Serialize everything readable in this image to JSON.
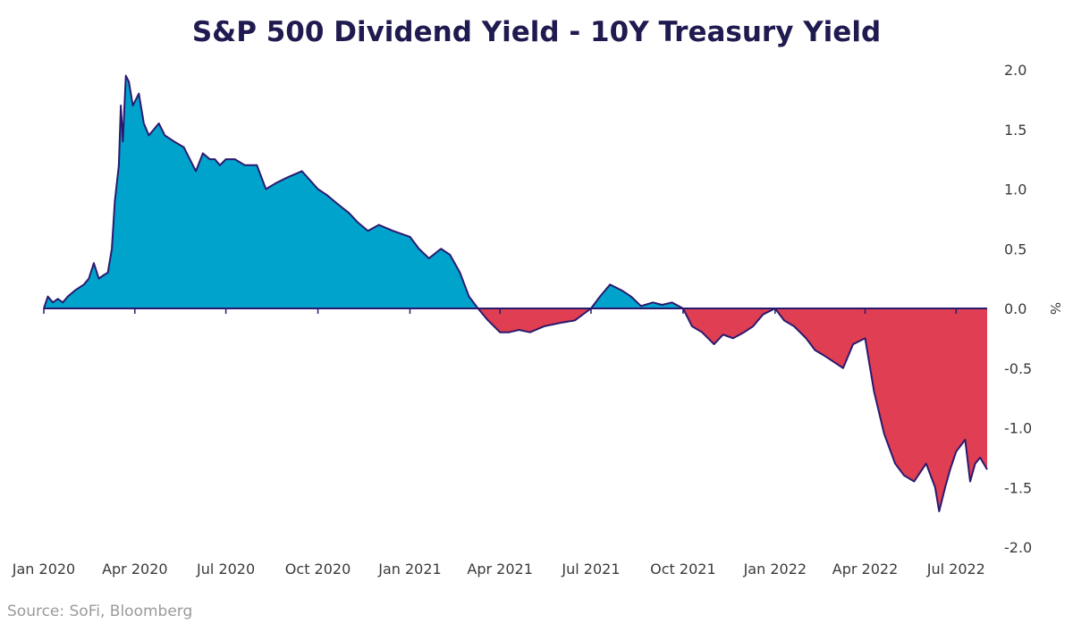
{
  "header": {
    "title": "S&P 500 Dividend Yield - 10Y Treasury Yield"
  },
  "footer": {
    "source": "Source: SoFi, Bloomberg"
  },
  "chart_data": {
    "type": "area",
    "title": "S&P 500 Dividend Yield - 10Y Treasury Yield",
    "xlabel": "",
    "ylabel": "%",
    "x_ticks": [
      "Jan 2020",
      "Apr 2020",
      "Jul 2020",
      "Oct 2020",
      "Jan 2021",
      "Apr 2021",
      "Jul 2021",
      "Oct 2021",
      "Jan 2022",
      "Apr 2022",
      "Jul 2022"
    ],
    "y_ticks": [
      "2.0",
      "1.5",
      "1.0",
      "0.5",
      "0.0",
      "-0.5",
      "-1.0",
      "-1.5",
      "-2.0"
    ],
    "ylim": [
      -2.0,
      2.0
    ],
    "xlim": [
      "2020-01-01",
      "2022-08-01"
    ],
    "grid": false,
    "positive_color": "#00a3cc",
    "negative_color": "#e03e52",
    "line_color": "#2a1a6e",
    "x": [
      "2020-01-01",
      "2020-01-05",
      "2020-01-10",
      "2020-01-15",
      "2020-01-20",
      "2020-01-25",
      "2020-02-01",
      "2020-02-10",
      "2020-02-15",
      "2020-02-20",
      "2020-02-25",
      "2020-03-01",
      "2020-03-05",
      "2020-03-09",
      "2020-03-12",
      "2020-03-16",
      "2020-03-18",
      "2020-03-20",
      "2020-03-23",
      "2020-03-26",
      "2020-03-30",
      "2020-04-05",
      "2020-04-10",
      "2020-04-15",
      "2020-04-20",
      "2020-04-25",
      "2020-05-01",
      "2020-05-10",
      "2020-05-20",
      "2020-06-01",
      "2020-06-08",
      "2020-06-15",
      "2020-06-20",
      "2020-06-25",
      "2020-07-01",
      "2020-07-10",
      "2020-07-20",
      "2020-08-01",
      "2020-08-10",
      "2020-08-20",
      "2020-09-01",
      "2020-09-15",
      "2020-10-01",
      "2020-10-10",
      "2020-10-20",
      "2020-11-01",
      "2020-11-10",
      "2020-11-20",
      "2020-12-01",
      "2020-12-15",
      "2021-01-01",
      "2021-01-10",
      "2021-01-20",
      "2021-02-01",
      "2021-02-10",
      "2021-02-20",
      "2021-03-01",
      "2021-03-10",
      "2021-03-20",
      "2021-04-01",
      "2021-04-10",
      "2021-04-20",
      "2021-05-01",
      "2021-05-15",
      "2021-06-01",
      "2021-06-15",
      "2021-07-01",
      "2021-07-10",
      "2021-07-20",
      "2021-08-01",
      "2021-08-10",
      "2021-08-20",
      "2021-09-01",
      "2021-09-10",
      "2021-09-20",
      "2021-10-01",
      "2021-10-10",
      "2021-10-20",
      "2021-11-01",
      "2021-11-10",
      "2021-11-20",
      "2021-12-01",
      "2021-12-10",
      "2021-12-20",
      "2022-01-01",
      "2022-01-10",
      "2022-01-20",
      "2022-02-01",
      "2022-02-10",
      "2022-02-20",
      "2022-03-01",
      "2022-03-10",
      "2022-03-20",
      "2022-04-01",
      "2022-04-10",
      "2022-04-20",
      "2022-05-01",
      "2022-05-10",
      "2022-05-20",
      "2022-06-01",
      "2022-06-10",
      "2022-06-14",
      "2022-06-20",
      "2022-06-25",
      "2022-07-01",
      "2022-07-10",
      "2022-07-15",
      "2022-07-20",
      "2022-07-25",
      "2022-08-01"
    ],
    "values": [
      0.0,
      0.1,
      0.05,
      0.08,
      0.05,
      0.1,
      0.15,
      0.2,
      0.25,
      0.38,
      0.25,
      0.28,
      0.3,
      0.5,
      0.9,
      1.2,
      1.7,
      1.4,
      1.95,
      1.9,
      1.7,
      1.8,
      1.55,
      1.45,
      1.5,
      1.55,
      1.45,
      1.4,
      1.35,
      1.15,
      1.3,
      1.25,
      1.25,
      1.2,
      1.25,
      1.25,
      1.2,
      1.2,
      1.0,
      1.05,
      1.1,
      1.15,
      1.0,
      0.95,
      0.88,
      0.8,
      0.72,
      0.65,
      0.7,
      0.65,
      0.6,
      0.5,
      0.42,
      0.5,
      0.45,
      0.3,
      0.1,
      0.0,
      -0.1,
      -0.2,
      -0.2,
      -0.18,
      -0.2,
      -0.15,
      -0.12,
      -0.1,
      0.0,
      0.1,
      0.2,
      0.15,
      0.1,
      0.02,
      0.05,
      0.03,
      0.05,
      0.0,
      -0.15,
      -0.2,
      -0.3,
      -0.22,
      -0.25,
      -0.2,
      -0.15,
      -0.05,
      0.0,
      -0.1,
      -0.15,
      -0.25,
      -0.35,
      -0.4,
      -0.45,
      -0.5,
      -0.3,
      -0.25,
      -0.7,
      -1.05,
      -1.3,
      -1.4,
      -1.45,
      -1.3,
      -1.5,
      -1.7,
      -1.5,
      -1.35,
      -1.2,
      -1.1,
      -1.45,
      -1.3,
      -1.25,
      -1.35
    ]
  }
}
